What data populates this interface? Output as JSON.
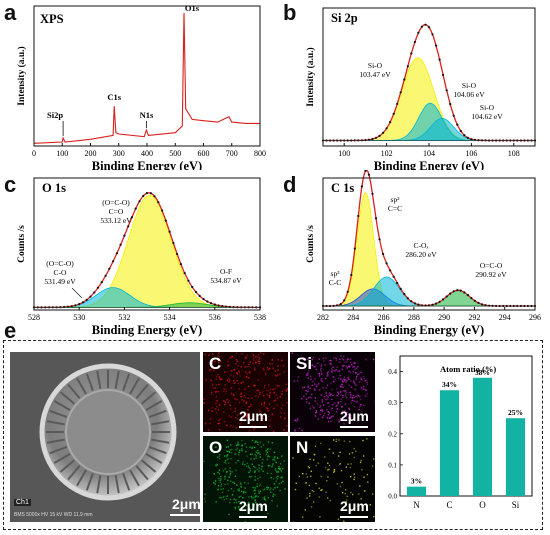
{
  "panels": {
    "a": {
      "label": "a",
      "title": "XPS",
      "xlabel": "Binding Energy (eV)",
      "ylabel": "Intensity (a.u.)",
      "xticks": [
        "0",
        "100",
        "200",
        "300",
        "400",
        "500",
        "600",
        "700",
        "800"
      ],
      "peaks": {
        "si2p": "Si2p",
        "c1s": "C1s",
        "n1s": "N1s",
        "o1s": "O1s"
      }
    },
    "b": {
      "label": "b",
      "title": "Si 2p",
      "xlabel": "Binding Energy (eV)",
      "ylabel": "Intensity (a.u.)",
      "xticks": [
        "100",
        "102",
        "104",
        "106",
        "108"
      ],
      "ann1": [
        "Si-O",
        "103.47 eV"
      ],
      "ann2": [
        "Si-O",
        "104.06 eV"
      ],
      "ann3": [
        "Si-O",
        "104.62 eV"
      ]
    },
    "c": {
      "label": "c",
      "title": "O 1s",
      "xlabel": "Binding Energy (eV)",
      "ylabel": "Counts /s",
      "xticks": [
        "528",
        "530",
        "532",
        "534",
        "536",
        "538"
      ],
      "ann1": [
        "(O=C-O)",
        "C=O",
        "533.12 eV"
      ],
      "ann2": [
        "(O=C-O)",
        "C-O",
        "531.49 eV"
      ],
      "ann3": [
        "O-F",
        "534.87 eV"
      ]
    },
    "d": {
      "label": "d",
      "title": "C 1s",
      "xlabel": "Binding Energy (eV)",
      "ylabel": "Counts /s",
      "xticks": [
        "282",
        "284",
        "286",
        "288",
        "290",
        "292",
        "294",
        "296"
      ],
      "ann_sp2": [
        "sp²",
        "C=C"
      ],
      "ann_sp3": [
        "sp³",
        "C-C"
      ],
      "ann_cox": [
        "C-Oₓ",
        "286.20 eV"
      ],
      "ann_oco": [
        "O=C-O",
        "290.92 eV"
      ]
    },
    "e": {
      "label": "e",
      "sem_scale": "2μm",
      "sem_tag": "Ch1",
      "sem_footer": "BMS 5000x HV 15 kV WD 11.9 mm",
      "maps": [
        {
          "element": "C",
          "scale": "2μm"
        },
        {
          "element": "Si",
          "scale": "2μm"
        },
        {
          "element": "O",
          "scale": "2μm"
        },
        {
          "element": "N",
          "scale": "2μm"
        }
      ]
    }
  },
  "colors": {
    "fill_yellow": "#f6f000",
    "fill_cyan": "#00b6d8",
    "fill_green": "#19b33a",
    "fill_blue": "#1f4fd6",
    "envelope_red": "#d8201c",
    "data_black": "#111111",
    "map_c": "#c8141c",
    "map_si": "#c222c8",
    "map_o": "#18b030",
    "map_n": "#c9c22a",
    "bar_teal": "#12b3a2"
  },
  "chart_data": [
    {
      "id": "a",
      "type": "line",
      "title": "XPS",
      "xlabel": "Binding Energy (eV)",
      "ylabel": "Intensity (a.u.)",
      "xlim": [
        0,
        800
      ],
      "x": [
        0,
        100,
        103,
        110,
        200,
        280,
        284,
        290,
        300,
        390,
        398,
        405,
        500,
        525,
        531,
        537,
        560,
        600,
        650,
        690,
        700,
        750,
        800
      ],
      "y": [
        0.02,
        0.03,
        0.06,
        0.03,
        0.05,
        0.08,
        0.3,
        0.1,
        0.09,
        0.07,
        0.12,
        0.08,
        0.1,
        0.15,
        1.0,
        0.28,
        0.2,
        0.19,
        0.18,
        0.22,
        0.18,
        0.17,
        0.17
      ],
      "annotations": [
        "Si2p",
        "C1s",
        "N1s",
        "O1s"
      ]
    },
    {
      "id": "b",
      "type": "line",
      "title": "Si 2p",
      "xlabel": "Binding Energy (eV)",
      "ylabel": "Intensity (a.u.)",
      "xlim": [
        99,
        109
      ],
      "series": [
        {
          "center": 103.47,
          "amplitude": 0.6,
          "width": 0.75
        },
        {
          "center": 104.06,
          "amplitude": 0.27,
          "width": 0.55
        },
        {
          "center": 104.62,
          "amplitude": 0.16,
          "width": 0.55
        }
      ],
      "baseline": 0.04,
      "annotations": [
        "Si-O 103.47 eV",
        "Si-O 104.06 eV",
        "Si-O 104.62 eV"
      ]
    },
    {
      "id": "c",
      "type": "line",
      "title": "O 1s",
      "xlabel": "Binding Energy (eV)",
      "ylabel": "Counts /s",
      "xlim": [
        528,
        538
      ],
      "series": [
        {
          "center": 533.12,
          "amplitude": 0.85,
          "width": 0.95
        },
        {
          "center": 531.49,
          "amplitude": 0.15,
          "width": 0.75
        },
        {
          "center": 534.87,
          "amplitude": 0.035,
          "width": 0.8
        }
      ],
      "baseline": 0.02,
      "annotations": [
        "(O=C-O) C=O 533.12 eV",
        "(O=C-O) C-O 531.49 eV",
        "O-F 534.87 eV"
      ]
    },
    {
      "id": "d",
      "type": "line",
      "title": "C 1s",
      "xlabel": "Binding Energy (eV)",
      "ylabel": "Counts /s",
      "xlim": [
        282,
        296
      ],
      "series": [
        {
          "center": 284.8,
          "amplitude": 0.86,
          "width": 0.55
        },
        {
          "center": 285.3,
          "amplitude": 0.13,
          "width": 0.8
        },
        {
          "center": 286.2,
          "amplitude": 0.22,
          "width": 0.85
        },
        {
          "center": 290.92,
          "amplitude": 0.12,
          "width": 0.75
        }
      ],
      "baseline": 0.03,
      "annotations": [
        "sp² C=C",
        "sp³ C-C",
        "C-Oₓ 286.20 eV",
        "O=C-O 290.92 eV"
      ]
    },
    {
      "id": "e",
      "type": "bar",
      "title": "Atom ratio (%)",
      "categories": [
        "N",
        "C",
        "O",
        "Si"
      ],
      "values": [
        0.03,
        0.34,
        0.38,
        0.25
      ],
      "value_labels": [
        "3%",
        "34%",
        "38%",
        "25%"
      ],
      "ylim": [
        0.0,
        0.45
      ],
      "yticks": [
        "0.0",
        "0.1",
        "0.2",
        "0.3",
        "0.4"
      ]
    }
  ]
}
